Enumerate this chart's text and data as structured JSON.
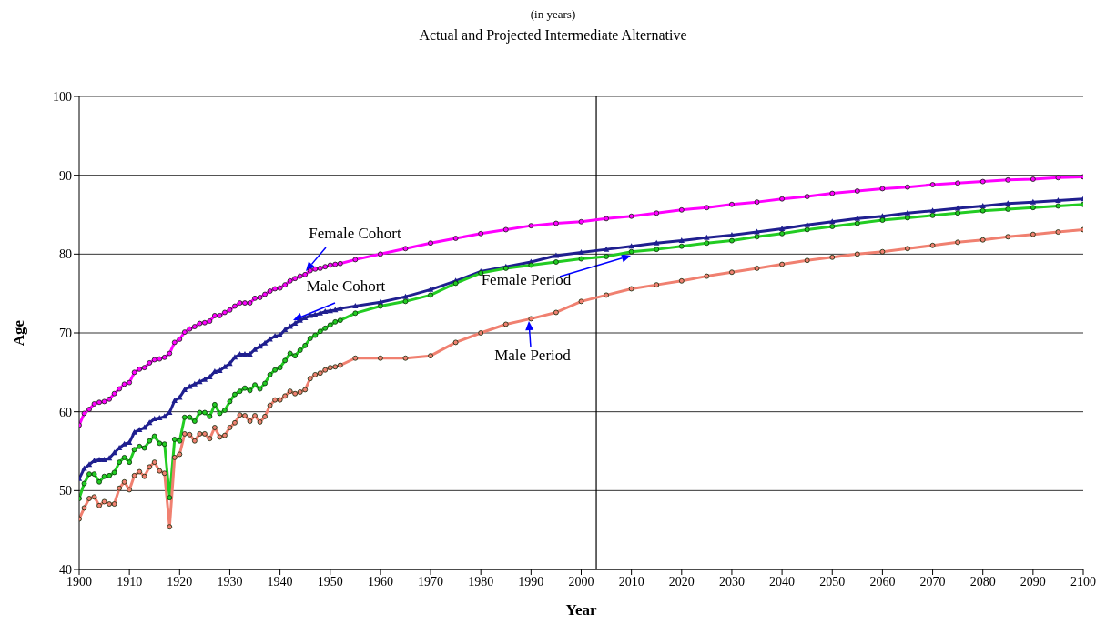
{
  "chart_data": {
    "type": "line",
    "title": "(in years)",
    "subtitle": "Actual and Projected Intermediate Alternative",
    "xlabel": "Year",
    "ylabel": "Age",
    "x": [
      1900,
      1901,
      1902,
      1903,
      1904,
      1905,
      1906,
      1907,
      1908,
      1909,
      1910,
      1911,
      1912,
      1913,
      1914,
      1915,
      1916,
      1917,
      1918,
      1919,
      1920,
      1921,
      1922,
      1923,
      1924,
      1925,
      1926,
      1927,
      1928,
      1929,
      1930,
      1931,
      1932,
      1933,
      1934,
      1935,
      1936,
      1937,
      1938,
      1939,
      1940,
      1941,
      1942,
      1943,
      1944,
      1945,
      1946,
      1947,
      1948,
      1949,
      1950,
      1951,
      1952,
      1955,
      1960,
      1965,
      1970,
      1975,
      1980,
      1985,
      1990,
      1995,
      2000,
      2005,
      2010,
      2015,
      2020,
      2025,
      2030,
      2035,
      2040,
      2045,
      2050,
      2055,
      2060,
      2065,
      2070,
      2075,
      2080,
      2085,
      2090,
      2095,
      2100
    ],
    "series": [
      {
        "name": "Female Cohort",
        "color": "#ff00ff",
        "marker": "circle",
        "values": [
          58.3,
          59.8,
          60.3,
          61.0,
          61.2,
          61.3,
          61.6,
          62.3,
          62.9,
          63.5,
          63.7,
          65.0,
          65.4,
          65.6,
          66.2,
          66.6,
          66.7,
          66.9,
          67.4,
          68.8,
          69.2,
          70.1,
          70.5,
          70.8,
          71.2,
          71.3,
          71.5,
          72.2,
          72.2,
          72.6,
          72.9,
          73.4,
          73.8,
          73.8,
          73.8,
          74.4,
          74.5,
          74.9,
          75.3,
          75.6,
          75.7,
          76.1,
          76.6,
          76.9,
          77.2,
          77.4,
          77.9,
          78.1,
          78.2,
          78.4,
          78.6,
          78.7,
          78.8,
          79.3,
          80.0,
          80.7,
          81.4,
          82.0,
          82.6,
          83.1,
          83.6,
          83.9,
          84.1,
          84.5,
          84.8,
          85.2,
          85.6,
          85.9,
          86.3,
          86.6,
          87.0,
          87.3,
          87.7,
          88.0,
          88.3,
          88.5,
          88.8,
          89.0,
          89.2,
          89.4,
          89.5,
          89.7,
          89.8
        ]
      },
      {
        "name": "Male Cohort",
        "color": "#1f1f8f",
        "marker": "triangle",
        "values": [
          51.5,
          52.8,
          53.3,
          53.8,
          53.9,
          53.9,
          54.1,
          54.8,
          55.4,
          55.9,
          56.1,
          57.4,
          57.7,
          58.0,
          58.6,
          59.1,
          59.2,
          59.4,
          59.9,
          61.4,
          61.8,
          62.8,
          63.2,
          63.5,
          63.8,
          64.1,
          64.4,
          65.1,
          65.2,
          65.7,
          66.1,
          66.9,
          67.3,
          67.3,
          67.3,
          67.9,
          68.3,
          68.7,
          69.2,
          69.6,
          69.7,
          70.4,
          70.8,
          71.2,
          71.6,
          71.9,
          72.2,
          72.3,
          72.5,
          72.7,
          72.8,
          72.9,
          73.1,
          73.4,
          73.9,
          74.6,
          75.5,
          76.6,
          77.8,
          78.4,
          79.0,
          79.8,
          80.2,
          80.6,
          81.0,
          81.4,
          81.7,
          82.1,
          82.4,
          82.8,
          83.2,
          83.7,
          84.1,
          84.5,
          84.8,
          85.2,
          85.5,
          85.8,
          86.1,
          86.4,
          86.6,
          86.8,
          87.0
        ]
      },
      {
        "name": "Female Period",
        "color": "#22cc22",
        "marker": "circle",
        "values": [
          49.0,
          50.9,
          52.1,
          52.1,
          51.1,
          51.8,
          51.9,
          52.3,
          53.6,
          54.2,
          53.6,
          55.2,
          55.6,
          55.4,
          56.3,
          56.9,
          56.0,
          55.9,
          49.1,
          56.5,
          56.3,
          59.3,
          59.3,
          58.8,
          59.9,
          59.9,
          59.4,
          60.9,
          59.8,
          60.2,
          61.3,
          62.2,
          62.6,
          63.0,
          62.7,
          63.4,
          62.9,
          63.6,
          64.7,
          65.3,
          65.6,
          66.5,
          67.4,
          67.1,
          67.8,
          68.4,
          69.3,
          69.7,
          70.2,
          70.6,
          71.0,
          71.4,
          71.6,
          72.5,
          73.4,
          74.0,
          74.8,
          76.3,
          77.6,
          78.2,
          78.6,
          79.0,
          79.4,
          79.7,
          80.3,
          80.6,
          81.0,
          81.4,
          81.7,
          82.2,
          82.6,
          83.1,
          83.5,
          83.9,
          84.3,
          84.6,
          84.9,
          85.2,
          85.5,
          85.7,
          85.9,
          86.1,
          86.3
        ]
      },
      {
        "name": "Male Period",
        "color": "#f08070",
        "marker": "circle",
        "values": [
          46.4,
          47.8,
          49.0,
          49.2,
          48.1,
          48.6,
          48.3,
          48.3,
          50.3,
          51.1,
          50.1,
          51.9,
          52.4,
          51.8,
          53.0,
          53.6,
          52.5,
          52.2,
          45.4,
          54.2,
          54.6,
          57.2,
          57.1,
          56.3,
          57.2,
          57.2,
          56.6,
          58.0,
          56.8,
          57.0,
          58.0,
          58.6,
          59.6,
          59.5,
          58.8,
          59.5,
          58.7,
          59.4,
          60.8,
          61.5,
          61.5,
          62.0,
          62.6,
          62.3,
          62.5,
          62.8,
          64.2,
          64.7,
          64.9,
          65.3,
          65.6,
          65.7,
          65.9,
          66.8,
          66.8,
          66.8,
          67.1,
          68.8,
          70.0,
          71.1,
          71.8,
          72.6,
          74.0,
          74.8,
          75.6,
          76.1,
          76.6,
          77.2,
          77.7,
          78.2,
          78.7,
          79.2,
          79.6,
          80.0,
          80.3,
          80.7,
          81.1,
          81.5,
          81.8,
          82.2,
          82.5,
          82.8,
          83.1
        ]
      }
    ],
    "xlim": [
      1900,
      2100
    ],
    "xticks": [
      1900,
      1910,
      1920,
      1930,
      1940,
      1950,
      1960,
      1970,
      1980,
      1990,
      2000,
      2010,
      2020,
      2030,
      2040,
      2050,
      2060,
      2070,
      2080,
      2090,
      2100
    ],
    "ylim": [
      40,
      100
    ],
    "yticks": [
      40,
      50,
      60,
      70,
      80,
      90,
      100
    ],
    "ref_lines": [
      {
        "axis": "x",
        "value": 2003,
        "color": "#000000"
      }
    ],
    "grid": "y",
    "legend": false
  }
}
